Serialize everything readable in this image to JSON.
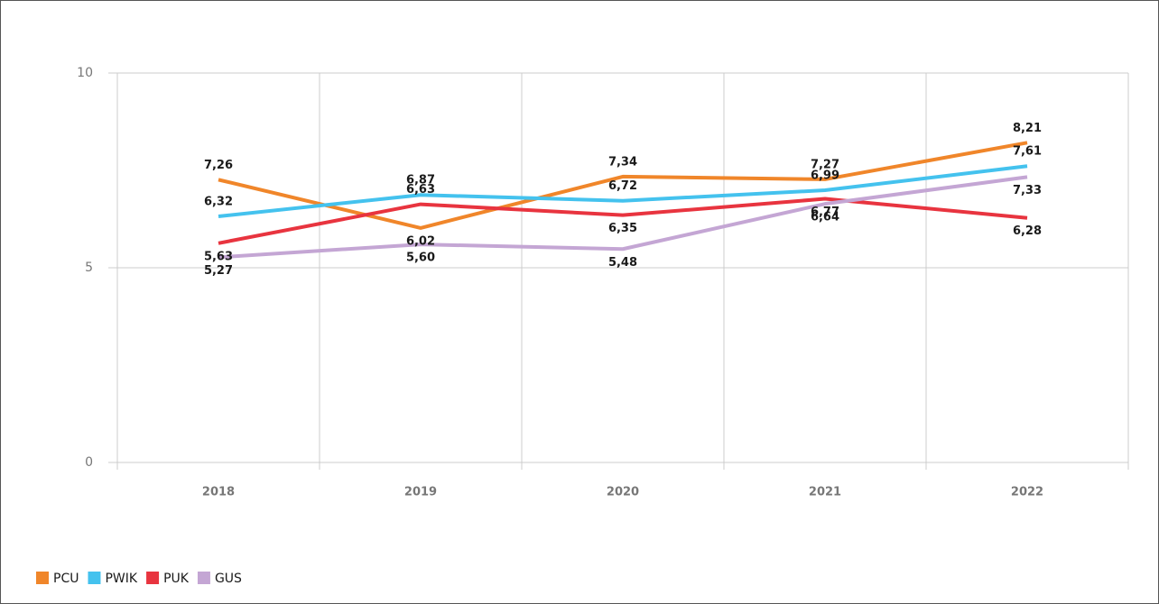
{
  "chart_data": {
    "type": "line",
    "categories": [
      "2018",
      "2019",
      "2020",
      "2021",
      "2022"
    ],
    "series": [
      {
        "name": "PCU",
        "color": "#f0862a",
        "values": [
          7.26,
          6.02,
          7.34,
          7.27,
          8.21
        ],
        "value_labels": [
          "7,26",
          "6,02",
          "7,34",
          "7,27",
          "8,21"
        ]
      },
      {
        "name": "PWIK",
        "color": "#44c2ee",
        "values": [
          6.32,
          6.87,
          6.72,
          6.99,
          7.61
        ],
        "value_labels": [
          "6,32",
          "6,87",
          "6,72",
          "6,99",
          "7,61"
        ]
      },
      {
        "name": "PUK",
        "color": "#e8343f",
        "values": [
          5.63,
          6.63,
          6.35,
          6.77,
          6.28
        ],
        "value_labels": [
          "5,63",
          "6,63",
          "6,35",
          "6,77",
          "6,28"
        ]
      },
      {
        "name": "GUS",
        "color": "#c4a6d4",
        "values": [
          5.27,
          5.6,
          5.48,
          6.64,
          7.33
        ],
        "value_labels": [
          "5,27",
          "5,60",
          "5,48",
          "6,64",
          "7,33"
        ]
      }
    ],
    "ylim": [
      0,
      10
    ],
    "yticks": [
      0,
      5,
      10
    ],
    "grid": true,
    "legend": "bottom-left"
  }
}
